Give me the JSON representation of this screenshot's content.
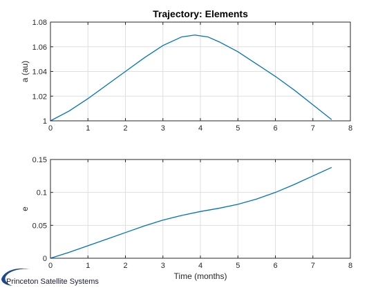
{
  "chart_data": [
    {
      "type": "line",
      "title": "Trajectory: Elements",
      "ylabel": "a (au)",
      "xlabel": "",
      "xlim": [
        0,
        8
      ],
      "ylim": [
        1,
        1.08
      ],
      "xticks": [
        0,
        1,
        2,
        3,
        4,
        5,
        6,
        7,
        8
      ],
      "xtick_labels": [
        "0",
        "1",
        "2",
        "3",
        "4",
        "5",
        "6",
        "7",
        "8"
      ],
      "yticks": [
        1,
        1.02,
        1.04,
        1.06,
        1.08
      ],
      "ytick_labels": [
        "1",
        "1.02",
        "1.04",
        "1.06",
        "1.08"
      ],
      "grid": true,
      "series": [
        {
          "color": "#0072bd",
          "x": [
            0,
            0.5,
            1,
            1.5,
            2,
            2.5,
            3,
            3.5,
            3.85,
            4.2,
            4.5,
            5,
            5.5,
            6,
            6.5,
            7,
            7.5
          ],
          "y": [
            1.0,
            1.008,
            1.018,
            1.029,
            1.04,
            1.051,
            1.061,
            1.068,
            1.0695,
            1.068,
            1.064,
            1.056,
            1.046,
            1.036,
            1.025,
            1.013,
            1.001
          ]
        }
      ]
    },
    {
      "type": "line",
      "title": "",
      "ylabel": "e",
      "xlabel": "Time (months)",
      "xlim": [
        0,
        8
      ],
      "ylim": [
        0,
        0.15
      ],
      "xticks": [
        0,
        1,
        2,
        3,
        4,
        5,
        6,
        7,
        8
      ],
      "xtick_labels": [
        "0",
        "1",
        "2",
        "3",
        "4",
        "5",
        "6",
        "7",
        "8"
      ],
      "yticks": [
        0,
        0.05,
        0.1,
        0.15
      ],
      "ytick_labels": [
        "0",
        "0.05",
        "0.1",
        "0.15"
      ],
      "grid": true,
      "series": [
        {
          "color": "#0072bd",
          "x": [
            0,
            0.5,
            1,
            1.5,
            2,
            2.5,
            3,
            3.5,
            4,
            4.5,
            5,
            5.5,
            6,
            6.5,
            7,
            7.5
          ],
          "y": [
            0.0,
            0.009,
            0.019,
            0.029,
            0.039,
            0.049,
            0.058,
            0.065,
            0.071,
            0.076,
            0.082,
            0.09,
            0.1,
            0.112,
            0.125,
            0.138
          ]
        }
      ]
    }
  ],
  "logo": {
    "text": "Princeton Satellite Systems",
    "color": "#1a4a8a"
  }
}
